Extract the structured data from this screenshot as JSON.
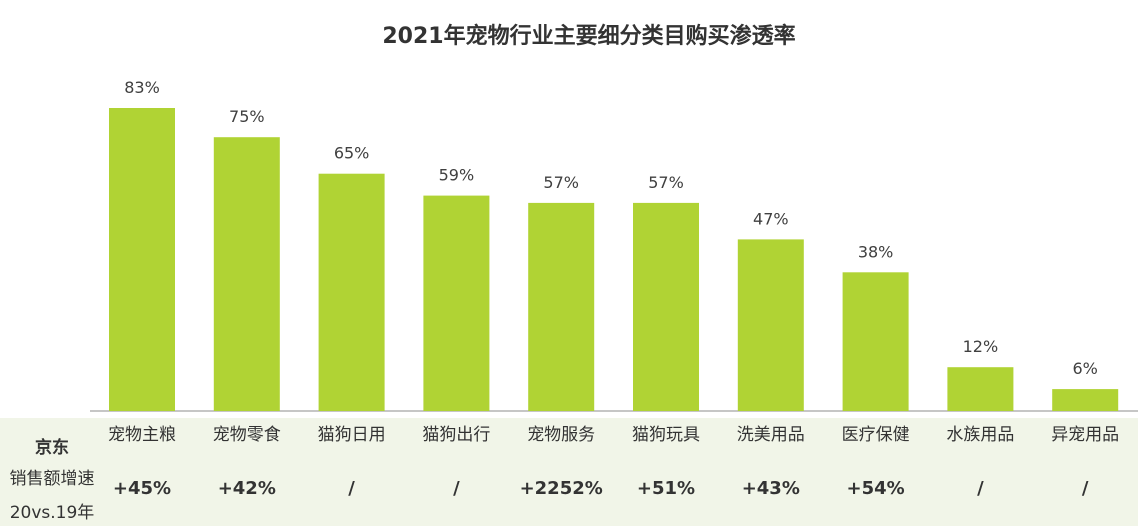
{
  "chart_data": {
    "type": "bar",
    "title": "2021年宠物行业主要细分类目购买渗透率",
    "categories": [
      "宠物主粮",
      "宠物零食",
      "猫狗日用",
      "猫狗出行",
      "宠物服务",
      "猫狗玩具",
      "洗美用品",
      "医疗保健",
      "水族用品",
      "异宠用品"
    ],
    "values": [
      83,
      75,
      65,
      59,
      57,
      57,
      47,
      38,
      12,
      6
    ],
    "value_labels": [
      "83%",
      "75%",
      "65%",
      "59%",
      "57%",
      "57%",
      "47%",
      "38%",
      "12%",
      "6%"
    ],
    "ylim": [
      0,
      100
    ],
    "grid": false,
    "bar_color": "#b0d334"
  },
  "table": {
    "brand_label": "京东",
    "metric_label_line1": "销售额增速",
    "metric_label_line2": "20vs.19年",
    "growth": [
      "+45%",
      "+42%",
      "/",
      "/",
      "+2252%",
      "+51%",
      "+43%",
      "+54%",
      "/",
      "/"
    ],
    "background_color": "#f1f5e8"
  }
}
